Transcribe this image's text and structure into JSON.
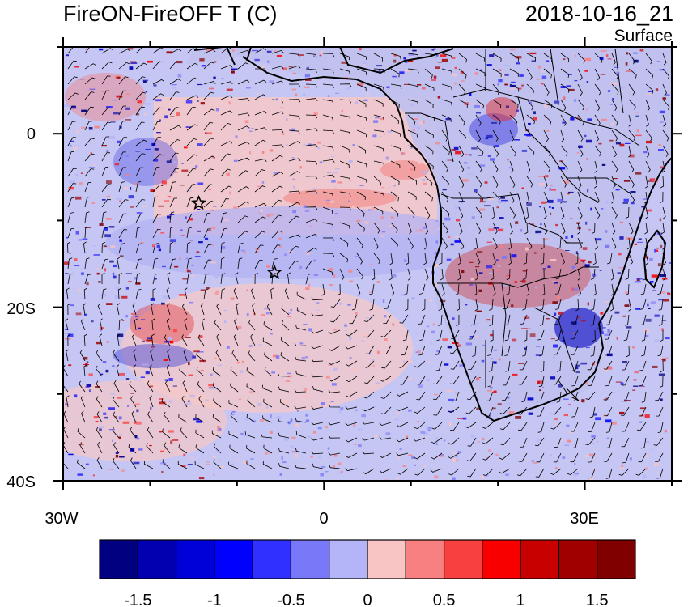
{
  "header": {
    "title": "FireON-FireOFF T (C)",
    "datetime": "2018-10-16_21",
    "level": "Surface"
  },
  "map": {
    "lat_ticks": [
      {
        "lat": 0,
        "label": "0"
      },
      {
        "lat": -20,
        "label": "20S"
      },
      {
        "lat": -40,
        "label": "40S"
      }
    ],
    "lon_ticks": [
      {
        "lon": -30,
        "label": "30W"
      },
      {
        "lon": 0,
        "label": "0"
      },
      {
        "lon": 30,
        "label": "30E"
      }
    ],
    "extent": {
      "lon_min": -30,
      "lon_max": 40,
      "lat_min": -40,
      "lat_max": 10
    },
    "markers": [
      {
        "name": "star-marker-1",
        "lon": -14.4,
        "lat": -8.0,
        "symbol": "star"
      },
      {
        "name": "star-marker-2",
        "lon": -5.7,
        "lat": -16.0,
        "symbol": "star"
      }
    ]
  },
  "colorbar": {
    "colors": [
      "#000080",
      "#0000b0",
      "#0000d8",
      "#0000ff",
      "#3030ff",
      "#7878f8",
      "#b4b4f8",
      "#f8c4c4",
      "#f88080",
      "#f84040",
      "#f80000",
      "#c80000",
      "#a00000",
      "#800000"
    ],
    "labels": [
      "-1.5",
      "-1",
      "-0.5",
      "0",
      "0.5",
      "1",
      "1.5"
    ]
  }
}
